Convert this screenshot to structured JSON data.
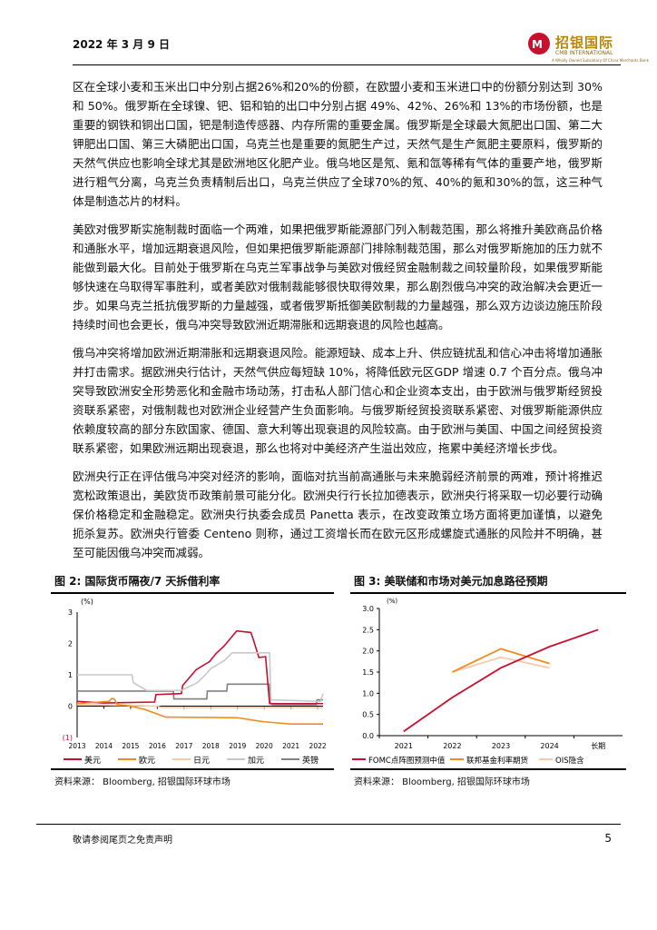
{
  "header": {
    "date": "2022 年 3 月 9 日",
    "logo_cn": "招银国际",
    "logo_en": "CMB INTERNATIONAL",
    "logo_sub": "A Wholly Owned Subsidiary Of China Merchants Bank"
  },
  "paragraphs": [
    "区在全球小麦和玉米出口中分别占据26%和20%的份额，在欧盟小麦和玉米进口中的份额分别达到 30%和 50%。俄罗斯在全球镍、钯、铝和铂的出口中分别占据 49%、42%、26%和 13%的市场份额，也是重要的钢铁和铜出口国，钯是制造传感器、内存所需的重要金属。俄罗斯是全球最大氮肥出口国、第二大钾肥出口国、第三大磷肥出口国，乌克兰也是重要的氮肥生产过，天然气是生产氮肥主要原料，俄罗斯的天然气供应也影响全球尤其是欧洲地区化肥产业。俄乌地区是氖、氪和氙等稀有气体的重要产地，俄罗斯进行粗气分离，乌克兰负责精制后出口，乌克兰供应了全球70%的氖、40%的氪和30%的氙，这三种气体是制造芯片的材料。",
    "美欧对俄罗斯实施制裁时面临一个两难，如果把俄罗斯能源部门列入制裁范围，那么将推升美欧商品价格和通胀水平，增加远期衰退风险，但如果把俄罗斯能源部门排除制裁范围，那么对俄罗斯施加的压力就不能做到最大化。目前处于俄罗斯在乌克兰军事战争与美欧对俄经贸金融制裁之间较量阶段，如果俄罗斯能够快速在乌取得军事胜利，或者美欧对俄制裁能够很快取得效果，那么剧烈俄乌冲突的政治解决会更近一步。如果乌克兰抵抗俄罗斯的力量越强，或者俄罗斯抵御美欧制裁的力量越强，那么双方边谈边施压阶段持续时间也会更长，俄乌冲突导致欧洲近期滞胀和远期衰退的风险也越高。",
    "俄乌冲突将增加欧洲近期滞胀和远期衰退风险。能源短缺、成本上升、供应链扰乱和信心冲击将增加通胀并打击需求。据欧洲央行估计，天然气供应每短缺 10%，将降低欧元区GDP 增速 0.7 个百分点。俄乌冲突导致欧洲安全形势恶化和金融市场动荡，打击私人部门信心和企业资本支出，由于欧洲与俄罗斯经贸投资联系紧密，对俄制裁也对欧洲企业经营产生负面影响。与俄罗斯经贸投资联系紧密、对俄罗斯能源供应依赖度较高的部分东欧国家、德国、意大利等出现衰退的风险较高。由于欧洲与美国、中国之间经贸投资联系紧密，如果欧洲远期出现衰退，那么也将对中美经济产生溢出效应，拖累中美经济增长步伐。",
    "欧洲央行正在评估俄乌冲突对经济的影响，面临对抗当前高通胀与未来脆弱经济前景的两难，预计将推迟宽松政策退出，美欧货币政策前景可能分化。欧洲央行行长拉加德表示，欧洲央行将采取一切必要行动确保价格稳定和金融稳定。欧洲央行执委会成员 Panetta 表示，在改变政策立场方面将更加谨慎，以避免扼杀复苏。欧洲央行管委 Centeno 则称，通过工资增长而在欧元区形成螺旋式通胀的风险并不明确，甚至可能因俄乌冲突而减弱。"
  ],
  "figures": [
    {
      "title": "图 2: 国际货币隔夜/7 天拆借利率",
      "source": "资料来源： Bloomberg, 招银国际环球市场"
    },
    {
      "title": "图 3: 美联储和市场对美元加息路径预期",
      "source": "资料来源： Bloomberg, 招银国际环球市场"
    }
  ],
  "chart_data": [
    {
      "type": "line",
      "unit": "(%)",
      "ylim": [
        -1,
        3
      ],
      "yticks": [
        "3",
        "2",
        "1",
        "0",
        "(1)"
      ],
      "xlim": [
        2013,
        2022.2
      ],
      "xticks": [
        "2013",
        "2014",
        "2015",
        "2016",
        "2017",
        "2018",
        "2019",
        "2020",
        "2021",
        "2022"
      ],
      "series": [
        {
          "name": "美元",
          "color": "#c8102e",
          "points": [
            [
              2013,
              0.15
            ],
            [
              2014,
              0.1
            ],
            [
              2015.9,
              0.13
            ],
            [
              2015.95,
              0.37
            ],
            [
              2016.9,
              0.4
            ],
            [
              2016.95,
              0.66
            ],
            [
              2017.2,
              0.91
            ],
            [
              2017.45,
              1.16
            ],
            [
              2017.95,
              1.42
            ],
            [
              2018.2,
              1.68
            ],
            [
              2018.5,
              1.92
            ],
            [
              2018.97,
              2.4
            ],
            [
              2019.5,
              2.35
            ],
            [
              2019.6,
              2.1
            ],
            [
              2019.8,
              1.55
            ],
            [
              2020.05,
              1.58
            ],
            [
              2020.2,
              0.08
            ],
            [
              2022.2,
              0.08
            ]
          ]
        },
        {
          "name": "欧元",
          "color": "#f28c1e",
          "points": [
            [
              2013,
              0.08
            ],
            [
              2014.2,
              0.15
            ],
            [
              2014.3,
              0.25
            ],
            [
              2014.4,
              0.22
            ],
            [
              2014.5,
              0.05
            ],
            [
              2015,
              0
            ],
            [
              2015.5,
              -0.1
            ],
            [
              2016,
              -0.25
            ],
            [
              2016.3,
              -0.35
            ],
            [
              2019,
              -0.37
            ],
            [
              2019.6,
              -0.45
            ],
            [
              2020,
              -0.5
            ],
            [
              2021,
              -0.57
            ],
            [
              2022.2,
              -0.57
            ]
          ]
        },
        {
          "name": "日元",
          "color": "#f6c9a8",
          "points": [
            [
              2013,
              0.05
            ],
            [
              2016,
              0
            ],
            [
              2016.2,
              -0.05
            ],
            [
              2022.2,
              -0.05
            ]
          ]
        },
        {
          "name": "加元",
          "color": "#c8c8c8",
          "points": [
            [
              2013,
              1
            ],
            [
              2015.05,
              1
            ],
            [
              2015.1,
              0.75
            ],
            [
              2015.6,
              0.5
            ],
            [
              2016.9,
              0.5
            ],
            [
              2017.5,
              0.75
            ],
            [
              2017.8,
              1
            ],
            [
              2018,
              1.2
            ],
            [
              2018.5,
              1.45
            ],
            [
              2018.8,
              1.7
            ],
            [
              2020.2,
              1.7
            ],
            [
              2020.25,
              0.2
            ],
            [
              2022.1,
              0.15
            ],
            [
              2022.2,
              0.4
            ]
          ]
        },
        {
          "name": "英镑",
          "color": "#808080",
          "points": [
            [
              2013,
              0.48
            ],
            [
              2016.6,
              0.48
            ],
            [
              2016.62,
              0.23
            ],
            [
              2017.85,
              0.23
            ],
            [
              2017.87,
              0.48
            ],
            [
              2018.6,
              0.48
            ],
            [
              2018.62,
              0.7
            ],
            [
              2020.2,
              0.7
            ],
            [
              2020.22,
              0.1
            ],
            [
              2020.3,
              0.05
            ],
            [
              2021.95,
              0.05
            ],
            [
              2021.97,
              0.2
            ],
            [
              2022.2,
              0.2
            ]
          ]
        }
      ]
    },
    {
      "type": "line",
      "unit": "(%)",
      "ylim": [
        0,
        3
      ],
      "yticks": [
        "3.0",
        "2.5",
        "2.0",
        "1.5",
        "1.0",
        "0.5",
        "0.0"
      ],
      "categories": [
        "2021",
        "2022",
        "2023",
        "2024",
        "长期"
      ],
      "series": [
        {
          "name": "FOMC点阵图预测中值",
          "color": "#c8102e",
          "values": [
            0.1,
            0.9,
            1.6,
            2.1,
            2.5
          ]
        },
        {
          "name": "联邦基金利率期货",
          "color": "#f28c1e",
          "values": [
            null,
            1.5,
            2.05,
            1.7,
            null
          ]
        },
        {
          "name": "OIS隐含",
          "color": "#f6c9a8",
          "values": [
            null,
            1.5,
            1.85,
            1.6,
            null
          ]
        }
      ]
    }
  ],
  "footer": {
    "disclaimer": "敬请参阅尾页之免责声明",
    "page": "5"
  }
}
